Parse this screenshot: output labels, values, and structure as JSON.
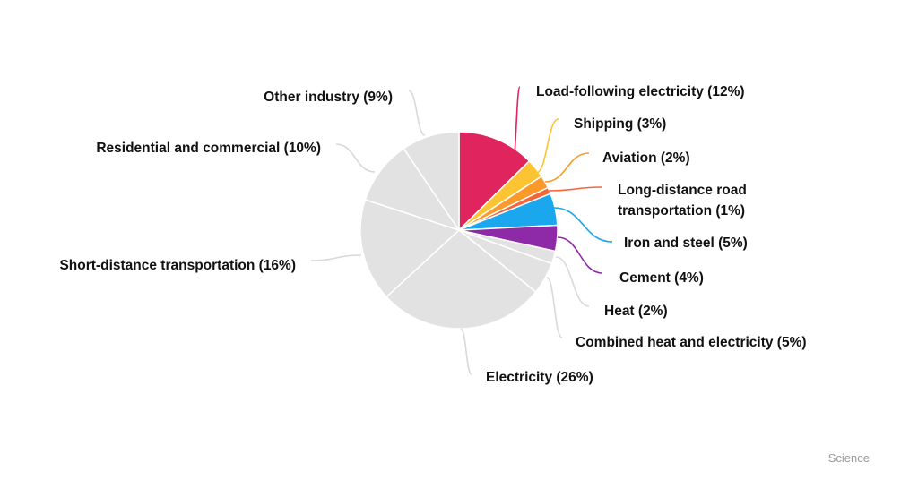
{
  "chart_data": {
    "type": "pie",
    "title": "",
    "slices": [
      {
        "label": "Load-following electricity (12%)",
        "value": 12,
        "color": "#e0245e"
      },
      {
        "label": "Shipping (3%)",
        "value": 3,
        "color": "#fcc433"
      },
      {
        "label": "Aviation (2%)",
        "value": 2,
        "color": "#fb9a2b"
      },
      {
        "label": "Long-distance road transportation (1%)",
        "lines": [
          "Long-distance road",
          "transportation (1%)"
        ],
        "value": 1,
        "color": "#f5653a"
      },
      {
        "label": "Iron and steel (5%)",
        "value": 5,
        "color": "#1aa7ee"
      },
      {
        "label": "Cement (4%)",
        "value": 4,
        "color": "#8e2aa8"
      },
      {
        "label": "Heat (2%)",
        "value": 2,
        "color": "#e2e2e2"
      },
      {
        "label": "Combined heat and electricity (5%)",
        "value": 5,
        "color": "#e2e2e2"
      },
      {
        "label": "Electricity (26%)",
        "value": 26,
        "color": "#e2e2e2"
      },
      {
        "label": "Short-distance transportation (16%)",
        "value": 16,
        "color": "#e2e2e2"
      },
      {
        "label": "Residential and commercial (10%)",
        "value": 10,
        "color": "#e2e2e2"
      },
      {
        "label": "Other industry (9%)",
        "value": 9,
        "color": "#e2e2e2"
      }
    ]
  },
  "source": "Science"
}
